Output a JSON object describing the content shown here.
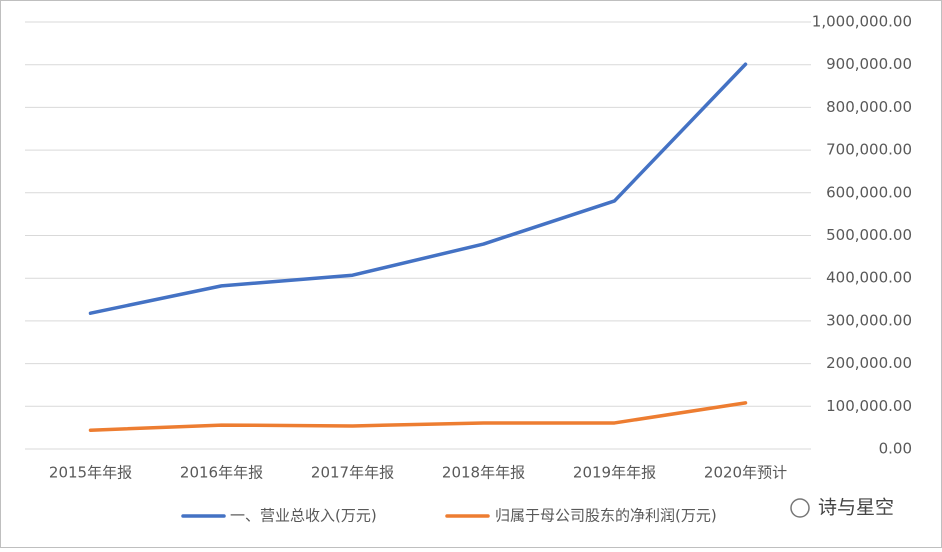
{
  "chart_data": {
    "type": "line",
    "categories": [
      "2015年年报",
      "2016年年报",
      "2017年年报",
      "2018年年报",
      "2019年年报",
      "2020年预计"
    ],
    "series": [
      {
        "name": "一、营业总收入(万元)",
        "color": "#4472c4",
        "values": [
          318000,
          382000,
          407000,
          480000,
          581000,
          901000
        ]
      },
      {
        "name": "归属于母公司股东的净利润(万元)",
        "color": "#ed7d31",
        "values": [
          44000,
          56000,
          54000,
          61000,
          61000,
          108000
        ]
      }
    ],
    "ylim": [
      0,
      1000000
    ],
    "yticks": [
      {
        "value": 0,
        "label": "0.00"
      },
      {
        "value": 100000,
        "label": "100,000.00"
      },
      {
        "value": 200000,
        "label": "200,000.00"
      },
      {
        "value": 300000,
        "label": "300,000.00"
      },
      {
        "value": 400000,
        "label": "400,000.00"
      },
      {
        "value": 500000,
        "label": "500,000.00"
      },
      {
        "value": 600000,
        "label": "600,000.00"
      },
      {
        "value": 700000,
        "label": "700,000.00"
      },
      {
        "value": 800000,
        "label": "800,000.00"
      },
      {
        "value": 900000,
        "label": "900,000.00"
      },
      {
        "value": 1000000,
        "label": "1,000,000.00"
      }
    ],
    "y_axis_side": "right",
    "grid": true,
    "legend": "bottom"
  },
  "watermark": "诗与星空"
}
